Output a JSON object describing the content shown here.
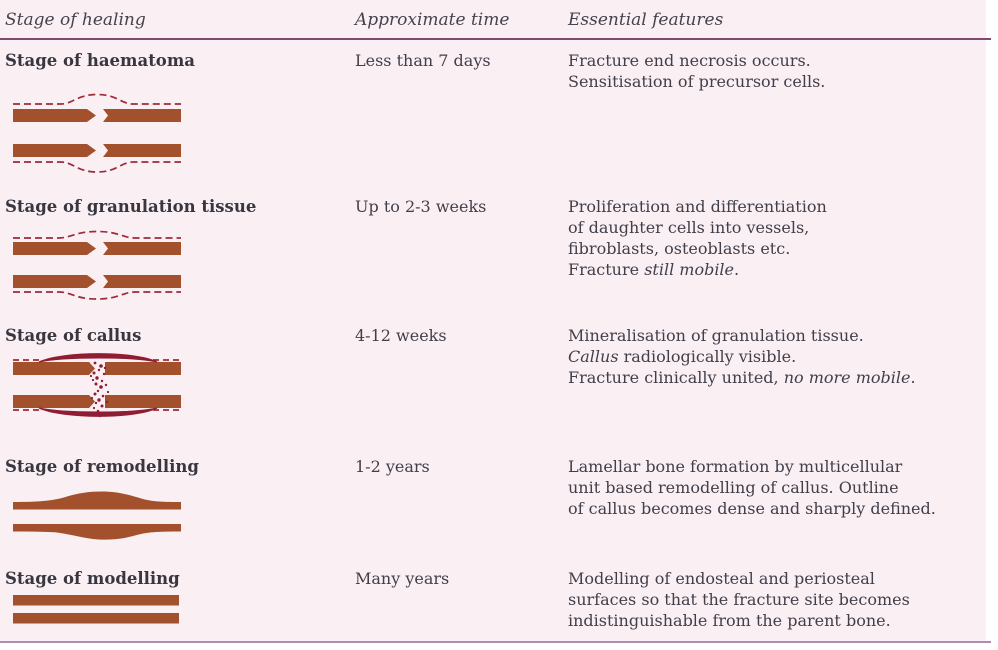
{
  "table": {
    "headers": [
      {
        "label": "Stage of healing"
      },
      {
        "label": "Approximate time"
      },
      {
        "label": "Essential features"
      }
    ],
    "rows": [
      {
        "stage": "Stage of haematoma",
        "time": "Less than 7 days",
        "features": [
          [
            {
              "t": "Fracture end necrosis occurs.",
              "i": false
            }
          ],
          [
            {
              "t": "Sensitisation of precursor cells.",
              "i": false
            }
          ]
        ],
        "diagram": "haematoma",
        "diagram_label": "fractured bone with dashed haematoma outline bulging over fracture gap"
      },
      {
        "stage": "Stage of granulation tissue",
        "time": "Up to 2-3 weeks",
        "features": [
          [
            {
              "t": "Proliferation and differentiation",
              "i": false
            }
          ],
          [
            {
              "t": "of daughter cells into vessels,",
              "i": false
            }
          ],
          [
            {
              "t": "fibroblasts, osteoblasts etc.",
              "i": false
            }
          ],
          [
            {
              "t": "Fracture ",
              "i": false
            },
            {
              "t": "still mobile",
              "i": true
            },
            {
              "t": ".",
              "i": false
            }
          ]
        ],
        "diagram": "granulation",
        "diagram_label": "fractured bone with flattened dashed granulation tissue outline"
      },
      {
        "stage": "Stage of callus",
        "time": "4-12 weeks",
        "features": [
          [
            {
              "t": "Mineralisation of granulation tissue.",
              "i": false
            }
          ],
          [
            {
              "t": "Callus",
              "i": true
            },
            {
              "t": " radiologically visible.",
              "i": false
            }
          ],
          [
            {
              "t": "Fracture clinically united, ",
              "i": false
            },
            {
              "t": "no more mobile",
              "i": true
            },
            {
              "t": ".",
              "i": false
            }
          ]
        ],
        "diagram": "callus",
        "diagram_label": "bone with speckled mineralising callus bridging fracture gap and fusiform callus outline"
      },
      {
        "stage": "Stage of remodelling",
        "time": "1-2 years",
        "features": [
          [
            {
              "t": "Lamellar bone formation by multicellular",
              "i": false
            }
          ],
          [
            {
              "t": "unit based remodelling of callus. Outline",
              "i": false
            }
          ],
          [
            {
              "t": "of callus becomes dense and sharply defined.",
              "i": false
            }
          ]
        ],
        "diagram": "remodelling",
        "diagram_label": "united bone with smooth fusiform thickening of dense callus"
      },
      {
        "stage": "Stage of modelling",
        "time": "Many years",
        "features": [
          [
            {
              "t": "Modelling of endosteal and periosteal",
              "i": false
            }
          ],
          [
            {
              "t": "surfaces so that the fracture site becomes",
              "i": false
            }
          ],
          [
            {
              "t": "indistinguishable from the parent bone.",
              "i": false
            }
          ]
        ],
        "diagram": "modelling",
        "diagram_label": "normal straight bone cortices indistinguishable from parent bone"
      }
    ]
  },
  "colors": {
    "background": "#faeff3",
    "text": "#403f4a",
    "title_text": "#38363f",
    "bone": "#a3512c",
    "haematoma_outline": "#9e2a3c",
    "callus": "#8f1d33",
    "rule_top": "#7e4a73",
    "rule_bottom": "#b38ab3"
  }
}
